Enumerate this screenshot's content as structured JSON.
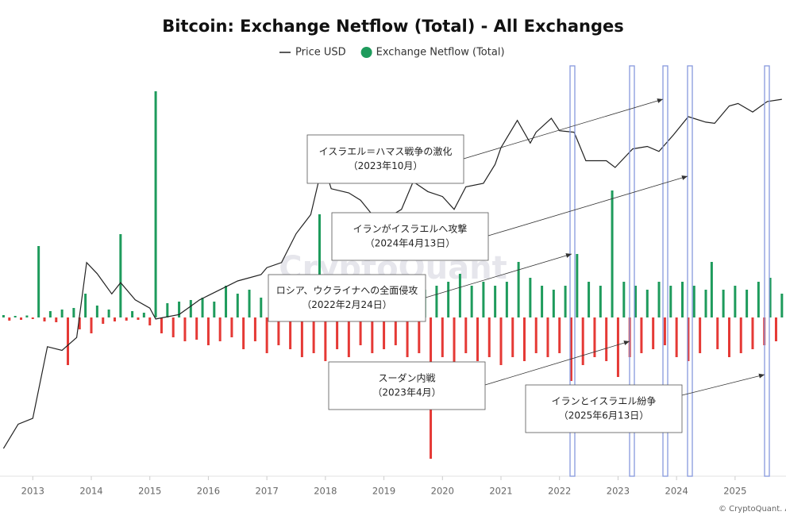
{
  "chart_data": {
    "type": "combo",
    "title": "Bitcoin: Exchange Netflow (Total) - All Exchanges",
    "watermark": "CryptoQuant",
    "credit": "© CryptoQuant. All",
    "xlim": [
      2012.44,
      2025.87
    ],
    "xticks": [
      2013,
      2014,
      2015,
      2016,
      2017,
      2018,
      2019,
      2020,
      2021,
      2022,
      2023,
      2024,
      2025
    ],
    "ylim": [
      -200000,
      305000
    ],
    "y2lim": [
      2.5,
      227000
    ],
    "y2_scale": "log",
    "series": [
      {
        "name": "Price USD",
        "type": "line",
        "axis": "y2",
        "color": "#222222",
        "x": [
          2012.5,
          2012.75,
          2013.0,
          2013.25,
          2013.5,
          2013.75,
          2013.92,
          2014.1,
          2014.35,
          2014.5,
          2014.75,
          2015.0,
          2015.1,
          2015.5,
          2015.85,
          2016.0,
          2016.5,
          2016.9,
          2017.0,
          2017.25,
          2017.5,
          2017.75,
          2017.96,
          2018.1,
          2018.4,
          2018.6,
          2018.9,
          2019.0,
          2019.3,
          2019.5,
          2019.75,
          2020.0,
          2020.2,
          2020.4,
          2020.7,
          2020.9,
          2021.0,
          2021.28,
          2021.5,
          2021.6,
          2021.86,
          2022.0,
          2022.25,
          2022.45,
          2022.8,
          2022.95,
          2023.25,
          2023.5,
          2023.7,
          2023.95,
          2024.2,
          2024.5,
          2024.65,
          2024.9,
          2025.05,
          2025.3,
          2025.55,
          2025.8
        ],
        "values": [
          5.5,
          11,
          13,
          100,
          90,
          130,
          1100,
          800,
          450,
          620,
          380,
          300,
          220,
          250,
          380,
          430,
          650,
          780,
          950,
          1100,
          2500,
          4300,
          19000,
          9000,
          8000,
          6500,
          3500,
          3700,
          5000,
          11000,
          8300,
          7200,
          5000,
          9500,
          10500,
          18000,
          29000,
          63000,
          33000,
          45000,
          67000,
          47000,
          45000,
          20000,
          20000,
          16500,
          28000,
          30000,
          26000,
          42000,
          70000,
          60000,
          58000,
          95000,
          102000,
          80000,
          108000,
          115000
        ]
      },
      {
        "name": "Exchange Netflow (Total)",
        "type": "bar",
        "color": "#1e9b5c",
        "negative_color": "#e53935",
        "x": [
          2012.5,
          2012.6,
          2012.7,
          2012.8,
          2012.9,
          2013.0,
          2013.1,
          2013.2,
          2013.3,
          2013.4,
          2013.5,
          2013.6,
          2013.7,
          2013.8,
          2013.9,
          2014.0,
          2014.1,
          2014.2,
          2014.3,
          2014.4,
          2014.5,
          2014.6,
          2014.7,
          2014.8,
          2014.9,
          2015.0,
          2015.1,
          2015.2,
          2015.3,
          2015.4,
          2015.5,
          2015.6,
          2015.7,
          2015.8,
          2015.9,
          2016.0,
          2016.1,
          2016.2,
          2016.3,
          2016.4,
          2016.5,
          2016.6,
          2016.7,
          2016.8,
          2016.9,
          2017.0,
          2017.1,
          2017.2,
          2017.3,
          2017.4,
          2017.5,
          2017.6,
          2017.7,
          2017.8,
          2017.9,
          2018.0,
          2018.1,
          2018.2,
          2018.3,
          2018.4,
          2018.5,
          2018.6,
          2018.7,
          2018.8,
          2018.9,
          2019.0,
          2019.1,
          2019.2,
          2019.3,
          2019.4,
          2019.5,
          2019.6,
          2019.7,
          2019.8,
          2019.9,
          2020.0,
          2020.1,
          2020.2,
          2020.3,
          2020.4,
          2020.5,
          2020.6,
          2020.7,
          2020.8,
          2020.9,
          2021.0,
          2021.1,
          2021.2,
          2021.3,
          2021.4,
          2021.5,
          2021.6,
          2021.7,
          2021.8,
          2021.9,
          2022.0,
          2022.1,
          2022.2,
          2022.3,
          2022.4,
          2022.5,
          2022.6,
          2022.7,
          2022.8,
          2022.9,
          2023.0,
          2023.1,
          2023.2,
          2023.3,
          2023.4,
          2023.5,
          2023.6,
          2023.7,
          2023.8,
          2023.9,
          2024.0,
          2024.1,
          2024.2,
          2024.3,
          2024.4,
          2024.5,
          2024.6,
          2024.7,
          2024.8,
          2024.9,
          2025.0,
          2025.1,
          2025.2,
          2025.3,
          2025.4,
          2025.5,
          2025.6,
          2025.7,
          2025.8
        ],
        "values": [
          3000,
          -4000,
          2000,
          -3000,
          2500,
          -2000,
          90000,
          -5000,
          8000,
          -6000,
          10000,
          -60000,
          12000,
          -15000,
          30000,
          -20000,
          15000,
          -8000,
          10000,
          -5000,
          105000,
          -4000,
          8000,
          -3000,
          6000,
          -10000,
          285000,
          -20000,
          18000,
          -25000,
          20000,
          -30000,
          22000,
          -28000,
          25000,
          -35000,
          20000,
          -30000,
          40000,
          -25000,
          30000,
          -40000,
          35000,
          -30000,
          25000,
          -45000,
          30000,
          -35000,
          45000,
          -40000,
          35000,
          -50000,
          40000,
          -45000,
          130000,
          -55000,
          45000,
          -40000,
          35000,
          -50000,
          30000,
          -35000,
          40000,
          -45000,
          35000,
          -40000,
          30000,
          -35000,
          45000,
          -50000,
          40000,
          -45000,
          35000,
          -178000,
          40000,
          -50000,
          45000,
          -70000,
          55000,
          -45000,
          40000,
          -55000,
          45000,
          -50000,
          40000,
          -60000,
          45000,
          -50000,
          70000,
          -55000,
          50000,
          -45000,
          40000,
          -50000,
          35000,
          -45000,
          40000,
          -80000,
          80000,
          -60000,
          45000,
          -50000,
          40000,
          -55000,
          160000,
          -75000,
          45000,
          -50000,
          40000,
          -45000,
          35000,
          -40000,
          45000,
          -35000,
          40000,
          -50000,
          45000,
          -55000,
          40000,
          -45000,
          35000,
          70000,
          -40000,
          35000,
          -50000,
          40000,
          -45000,
          35000,
          -40000,
          45000,
          -35000,
          50000,
          -30000,
          30000
        ]
      }
    ],
    "annotations": [
      {
        "lines": [
          "イスラエル＝ハマス戦争の激化",
          "（2023年10月）"
        ]
      },
      {
        "lines": [
          "イランがイスラエルへ攻撃",
          "（2024年4月13日）"
        ]
      },
      {
        "lines": [
          "ロシア、ウクライナへの全面侵攻",
          "（2022年2月24日）"
        ]
      },
      {
        "lines": [
          "スーダン内戦",
          "（2023年4月）"
        ]
      },
      {
        "lines": [
          "イランとイスラエル紛争",
          "（2025年6月13日）"
        ]
      }
    ]
  }
}
